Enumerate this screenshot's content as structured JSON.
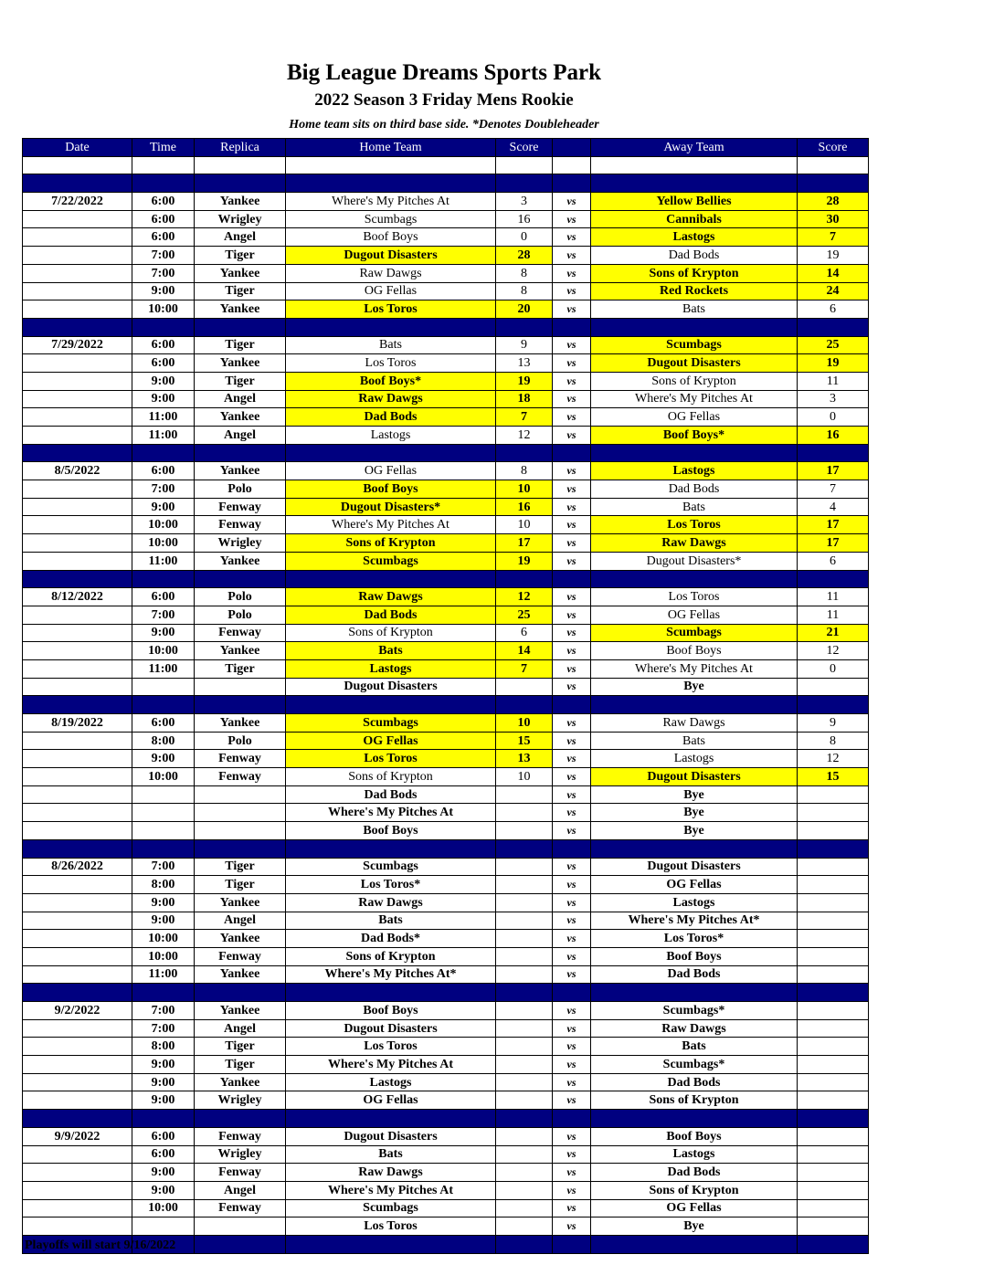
{
  "header": {
    "title": "Big League Dreams Sports Park",
    "subtitle": "2022 Season 3 Friday Mens Rookie",
    "note": "Home team sits on third base side.  *Denotes Doubleheader"
  },
  "columns": [
    "Date",
    "Time",
    "Replica",
    "Home Team",
    "Score",
    "",
    "Away Team",
    "Score"
  ],
  "vs_label": "vs",
  "colors": {
    "header_bg": "#000080",
    "winner_highlight": "#ffff00"
  },
  "weeks": [
    {
      "date": "7/22/2022",
      "games": [
        {
          "time": "6:00",
          "replica": "Yankee",
          "home": "Where's My Pitches At",
          "home_score": "3",
          "away": "Yellow Bellies",
          "away_score": "28",
          "winner": "away"
        },
        {
          "time": "6:00",
          "replica": "Wrigley",
          "home": "Scumbags",
          "home_score": "16",
          "away": "Cannibals",
          "away_score": "30",
          "winner": "away"
        },
        {
          "time": "6:00",
          "replica": "Angel",
          "home": "Boof Boys",
          "home_score": "0",
          "away": "Lastogs",
          "away_score": "7",
          "winner": "away"
        },
        {
          "time": "7:00",
          "replica": "Tiger",
          "home": "Dugout Disasters",
          "home_score": "28",
          "away": "Dad Bods",
          "away_score": "19",
          "winner": "home"
        },
        {
          "time": "7:00",
          "replica": "Yankee",
          "home": "Raw Dawgs",
          "home_score": "8",
          "away": "Sons of Krypton",
          "away_score": "14",
          "winner": "away"
        },
        {
          "time": "9:00",
          "replica": "Tiger",
          "home": "OG Fellas",
          "home_score": "8",
          "away": "Red Rockets",
          "away_score": "24",
          "winner": "away"
        },
        {
          "time": "10:00",
          "replica": "Yankee",
          "home": "Los Toros",
          "home_score": "20",
          "away": "Bats",
          "away_score": "6",
          "winner": "home"
        }
      ]
    },
    {
      "date": "7/29/2022",
      "games": [
        {
          "time": "6:00",
          "replica": "Tiger",
          "home": "Bats",
          "home_score": "9",
          "away": "Scumbags",
          "away_score": "25",
          "winner": "away"
        },
        {
          "time": "6:00",
          "replica": "Yankee",
          "home": "Los Toros",
          "home_score": "13",
          "away": "Dugout Disasters",
          "away_score": "19",
          "winner": "away"
        },
        {
          "time": "9:00",
          "replica": "Tiger",
          "home": "Boof Boys*",
          "home_score": "19",
          "away": "Sons of Krypton",
          "away_score": "11",
          "winner": "home"
        },
        {
          "time": "9:00",
          "replica": "Angel",
          "home": "Raw Dawgs",
          "home_score": "18",
          "away": "Where's My Pitches At",
          "away_score": "3",
          "winner": "home"
        },
        {
          "time": "11:00",
          "replica": "Yankee",
          "home": "Dad Bods",
          "home_score": "7",
          "away": "OG Fellas",
          "away_score": "0",
          "winner": "home"
        },
        {
          "time": "11:00",
          "replica": "Angel",
          "home": "Lastogs",
          "home_score": "12",
          "away": "Boof Boys*",
          "away_score": "16",
          "winner": "away"
        }
      ]
    },
    {
      "date": "8/5/2022",
      "games": [
        {
          "time": "6:00",
          "replica": "Yankee",
          "home": "OG Fellas",
          "home_score": "8",
          "away": "Lastogs",
          "away_score": "17",
          "winner": "away"
        },
        {
          "time": "7:00",
          "replica": "Polo",
          "home": "Boof Boys",
          "home_score": "10",
          "away": "Dad Bods",
          "away_score": "7",
          "winner": "home"
        },
        {
          "time": "9:00",
          "replica": "Fenway",
          "home": "Dugout Disasters*",
          "home_score": "16",
          "away": "Bats",
          "away_score": "4",
          "winner": "home"
        },
        {
          "time": "10:00",
          "replica": "Fenway",
          "home": "Where's My Pitches At",
          "home_score": "10",
          "away": "Los Toros",
          "away_score": "17",
          "winner": "away"
        },
        {
          "time": "10:00",
          "replica": "Wrigley",
          "home": "Sons of Krypton",
          "home_score": "17",
          "away": "Raw Dawgs",
          "away_score": "17",
          "winner": "both"
        },
        {
          "time": "11:00",
          "replica": "Yankee",
          "home": "Scumbags",
          "home_score": "19",
          "away": "Dugout Disasters*",
          "away_score": "6",
          "winner": "home"
        }
      ]
    },
    {
      "date": "8/12/2022",
      "games": [
        {
          "time": "6:00",
          "replica": "Polo",
          "home": "Raw Dawgs",
          "home_score": "12",
          "away": "Los Toros",
          "away_score": "11",
          "winner": "home"
        },
        {
          "time": "7:00",
          "replica": "Polo",
          "home": "Dad Bods",
          "home_score": "25",
          "away": "OG Fellas",
          "away_score": "11",
          "winner": "home"
        },
        {
          "time": "9:00",
          "replica": "Fenway",
          "home": "Sons of Krypton",
          "home_score": "6",
          "away": "Scumbags",
          "away_score": "21",
          "winner": "away"
        },
        {
          "time": "10:00",
          "replica": "Yankee",
          "home": "Bats",
          "home_score": "14",
          "away": "Boof Boys",
          "away_score": "12",
          "winner": "home"
        },
        {
          "time": "11:00",
          "replica": "Tiger",
          "home": "Lastogs",
          "home_score": "7",
          "away": "Where's My Pitches At",
          "away_score": "0",
          "winner": "home"
        },
        {
          "time": "",
          "replica": "",
          "home": "Dugout Disasters",
          "home_score": "",
          "away": "Bye",
          "away_score": "",
          "winner": "bye"
        }
      ]
    },
    {
      "date": "8/19/2022",
      "games": [
        {
          "time": "6:00",
          "replica": "Yankee",
          "home": "Scumbags",
          "home_score": "10",
          "away": "Raw Dawgs",
          "away_score": "9",
          "winner": "home"
        },
        {
          "time": "8:00",
          "replica": "Polo",
          "home": "OG Fellas",
          "home_score": "15",
          "away": "Bats",
          "away_score": "8",
          "winner": "home"
        },
        {
          "time": "9:00",
          "replica": "Fenway",
          "home": "Los Toros",
          "home_score": "13",
          "away": "Lastogs",
          "away_score": "12",
          "winner": "home"
        },
        {
          "time": "10:00",
          "replica": "Fenway",
          "home": "Sons of Krypton",
          "home_score": "10",
          "away": "Dugout Disasters",
          "away_score": "15",
          "winner": "away"
        },
        {
          "time": "",
          "replica": "",
          "home": "Dad Bods",
          "home_score": "",
          "away": "Bye",
          "away_score": "",
          "winner": "bye"
        },
        {
          "time": "",
          "replica": "",
          "home": "Where's My Pitches At",
          "home_score": "",
          "away": "Bye",
          "away_score": "",
          "winner": "bye"
        },
        {
          "time": "",
          "replica": "",
          "home": "Boof Boys",
          "home_score": "",
          "away": "Bye",
          "away_score": "",
          "winner": "bye"
        }
      ]
    },
    {
      "date": "8/26/2022",
      "games": [
        {
          "time": "7:00",
          "replica": "Tiger",
          "home": "Scumbags",
          "home_score": "",
          "away": "Dugout Disasters",
          "away_score": "",
          "winner": ""
        },
        {
          "time": "8:00",
          "replica": "Tiger",
          "home": "Los Toros*",
          "home_score": "",
          "away": "OG Fellas",
          "away_score": "",
          "winner": ""
        },
        {
          "time": "9:00",
          "replica": "Yankee",
          "home": "Raw Dawgs",
          "home_score": "",
          "away": "Lastogs",
          "away_score": "",
          "winner": ""
        },
        {
          "time": "9:00",
          "replica": "Angel",
          "home": "Bats",
          "home_score": "",
          "away": "Where's My Pitches At*",
          "away_score": "",
          "winner": ""
        },
        {
          "time": "10:00",
          "replica": "Yankee",
          "home": "Dad Bods*",
          "home_score": "",
          "away": "Los Toros*",
          "away_score": "",
          "winner": ""
        },
        {
          "time": "10:00",
          "replica": "Fenway",
          "home": "Sons of Krypton",
          "home_score": "",
          "away": "Boof Boys",
          "away_score": "",
          "winner": ""
        },
        {
          "time": "11:00",
          "replica": "Yankee",
          "home": "Where's My Pitches At*",
          "home_score": "",
          "away": "Dad Bods",
          "away_score": "",
          "winner": ""
        }
      ]
    },
    {
      "date": "9/2/2022",
      "games": [
        {
          "time": "7:00",
          "replica": "Yankee",
          "home": "Boof Boys",
          "home_score": "",
          "away": "Scumbags*",
          "away_score": "",
          "winner": ""
        },
        {
          "time": "7:00",
          "replica": "Angel",
          "home": "Dugout Disasters",
          "home_score": "",
          "away": "Raw Dawgs",
          "away_score": "",
          "winner": ""
        },
        {
          "time": "8:00",
          "replica": "Tiger",
          "home": "Los Toros",
          "home_score": "",
          "away": "Bats",
          "away_score": "",
          "winner": ""
        },
        {
          "time": "9:00",
          "replica": "Tiger",
          "home": "Where's My Pitches At",
          "home_score": "",
          "away": "Scumbags*",
          "away_score": "",
          "winner": ""
        },
        {
          "time": "9:00",
          "replica": "Yankee",
          "home": "Lastogs",
          "home_score": "",
          "away": "Dad Bods",
          "away_score": "",
          "winner": ""
        },
        {
          "time": "9:00",
          "replica": "Wrigley",
          "home": "OG Fellas",
          "home_score": "",
          "away": "Sons of Krypton",
          "away_score": "",
          "winner": ""
        }
      ]
    },
    {
      "date": "9/9/2022",
      "games": [
        {
          "time": "6:00",
          "replica": "Fenway",
          "home": "Dugout Disasters",
          "home_score": "",
          "away": "Boof Boys",
          "away_score": "",
          "winner": ""
        },
        {
          "time": "6:00",
          "replica": "Wrigley",
          "home": "Bats",
          "home_score": "",
          "away": "Lastogs",
          "away_score": "",
          "winner": ""
        },
        {
          "time": "9:00",
          "replica": "Fenway",
          "home": "Raw Dawgs",
          "home_score": "",
          "away": "Dad Bods",
          "away_score": "",
          "winner": ""
        },
        {
          "time": "9:00",
          "replica": "Angel",
          "home": "Where's My Pitches At",
          "home_score": "",
          "away": "Sons of Krypton",
          "away_score": "",
          "winner": ""
        },
        {
          "time": "10:00",
          "replica": "Fenway",
          "home": "Scumbags",
          "home_score": "",
          "away": "OG Fellas",
          "away_score": "",
          "winner": ""
        },
        {
          "time": "",
          "replica": "",
          "home": "Los Toros",
          "home_score": "",
          "away": "Bye",
          "away_score": "",
          "winner": "bye"
        }
      ]
    }
  ],
  "footer": "Playoffs will start 9/16/2022"
}
